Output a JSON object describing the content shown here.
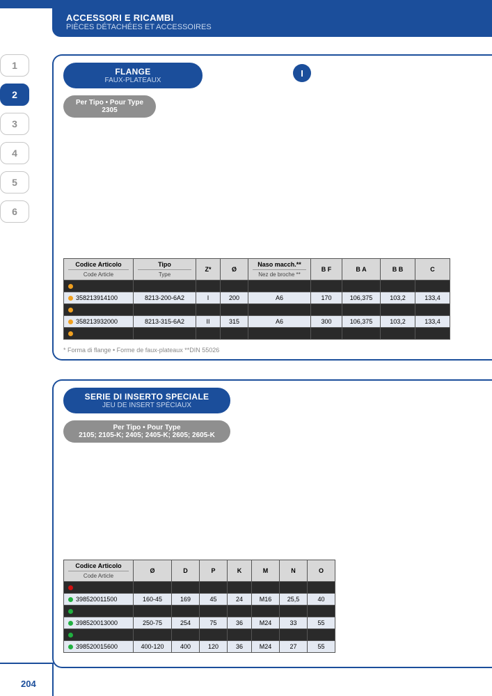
{
  "header": {
    "title_it": "ACCESSORI E RICAMBI",
    "title_fr": "PIÈCES DÉTACHÉES ET ACCESSOIRES"
  },
  "side_tabs": [
    "1",
    "2",
    "3",
    "4",
    "5",
    "6"
  ],
  "side_active_index": 1,
  "section1": {
    "pill": {
      "l1": "FLANGE",
      "l2": "FAUX-PLATEAUX"
    },
    "sub": {
      "s1": "Per Tipo • Pour Type",
      "s2": "2305"
    },
    "badge": "I",
    "footnote": "* Forma di flange • Forme de faux-plateaux   **DIN 55026",
    "table": {
      "headers": [
        {
          "it": "Codice Articolo",
          "fr": "Code Article"
        },
        {
          "it": "Tipo",
          "fr": "Type"
        },
        {
          "label": "Z*"
        },
        {
          "label": "Ø"
        },
        {
          "it": "Naso macch.**",
          "fr": "Nez de broche **"
        },
        {
          "label": "B F"
        },
        {
          "label": "B A"
        },
        {
          "label": "B B"
        },
        {
          "label": "C"
        }
      ],
      "rows": [
        {
          "dark": true,
          "dot": "#f0a020",
          "cells": [
            "",
            "",
            "",
            "",
            "",
            "",
            "",
            "",
            ""
          ]
        },
        {
          "alt": true,
          "dot": "#f0a020",
          "cells": [
            "358213914100",
            "8213-200-6A2",
            "I",
            "200",
            "A6",
            "170",
            "106,375",
            "103,2",
            "133,4"
          ]
        },
        {
          "dark": true,
          "dot": "#f0a020",
          "cells": [
            "",
            "",
            "",
            "",
            "",
            "",
            "",
            "",
            ""
          ]
        },
        {
          "alt": true,
          "dot": "#f0a020",
          "cells": [
            "358213932000",
            "8213-315-6A2",
            "II",
            "315",
            "A6",
            "300",
            "106,375",
            "103,2",
            "133,4"
          ]
        },
        {
          "dark": true,
          "dot": "#f0a020",
          "cells": [
            "",
            "",
            "",
            "",
            "",
            "",
            "",
            "",
            ""
          ]
        }
      ],
      "col_widths": [
        "100px",
        "90px",
        "35px",
        "40px",
        "90px",
        "45px",
        "55px",
        "50px",
        "50px"
      ]
    }
  },
  "section2": {
    "pill": {
      "l1": "SERIE DI INSERTO SPECIALE",
      "l2": "JEU DE INSERT SPÉCIAUX"
    },
    "sub": {
      "s1": "Per Tipo • Pour Type",
      "s2": "2105; 2105-K; 2405; 2405-K; 2605; 2605-K"
    },
    "table": {
      "headers": [
        {
          "it": "Codice Articolo",
          "fr": "Code Article"
        },
        {
          "label": "Ø"
        },
        {
          "label": "D"
        },
        {
          "label": "P"
        },
        {
          "label": "K"
        },
        {
          "label": "M"
        },
        {
          "label": "N"
        },
        {
          "label": "O"
        }
      ],
      "rows": [
        {
          "dark": true,
          "dot": "#d01010",
          "cells": [
            "",
            "",
            "",
            "",
            "",
            "",
            "",
            ""
          ]
        },
        {
          "alt": true,
          "dot": "#20b040",
          "cells": [
            "398520011500",
            "160-45",
            "169",
            "45",
            "24",
            "M16",
            "25,5",
            "40"
          ]
        },
        {
          "dark": true,
          "dot": "#20b040",
          "cells": [
            "",
            "",
            "",
            "",
            "",
            "",
            "",
            ""
          ]
        },
        {
          "alt": true,
          "dot": "#20b040",
          "cells": [
            "398520013000",
            "250-75",
            "254",
            "75",
            "36",
            "M24",
            "33",
            "55"
          ]
        },
        {
          "dark": true,
          "dot": "#20b040",
          "cells": [
            "",
            "",
            "",
            "",
            "",
            "",
            "",
            ""
          ]
        },
        {
          "alt": true,
          "dot": "#20b040",
          "cells": [
            "398520015600",
            "400-120",
            "400",
            "120",
            "36",
            "M24",
            "27",
            "55"
          ]
        }
      ],
      "col_widths": [
        "100px",
        "55px",
        "40px",
        "40px",
        "35px",
        "40px",
        "40px",
        "40px"
      ]
    }
  },
  "page_number": "204",
  "colors": {
    "brand": "#1b4e9b",
    "grey": "#8f8f8f",
    "header_grey": "#d8d8d8",
    "alt_row": "#e4e9f2",
    "dark_row": "#2a2a2a"
  }
}
